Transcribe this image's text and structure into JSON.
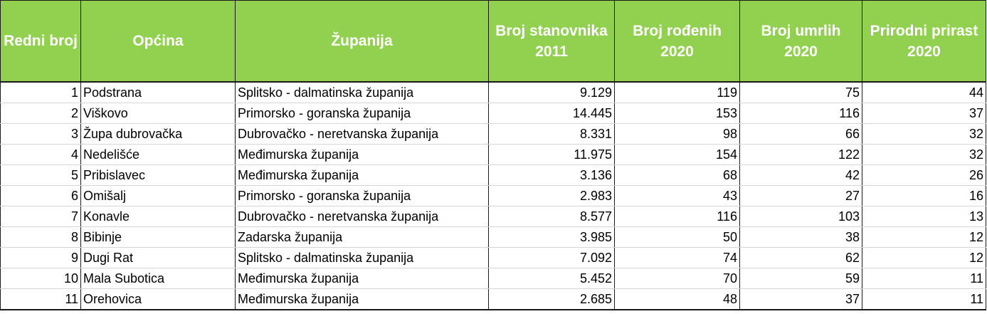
{
  "headers": {
    "rank": "Redni broj",
    "municipality": "Općina",
    "county": "Županija",
    "population": "Broj stanovnika 2011",
    "births": "Broj rođenih 2020",
    "deaths": "Broj umrlih 2020",
    "growth": "Prirodni prirast 2020"
  },
  "rows": [
    {
      "rank": "1",
      "municipality": "Podstrana",
      "county": "Splitsko - dalmatinska županija",
      "population": "9.129",
      "births": "119",
      "deaths": "75",
      "growth": "44"
    },
    {
      "rank": "2",
      "municipality": "Viškovo",
      "county": "Primorsko - goranska županija",
      "population": "14.445",
      "births": "153",
      "deaths": "116",
      "growth": "37"
    },
    {
      "rank": "3",
      "municipality": "Župa dubrovačka",
      "county": "Dubrovačko - neretvanska županija",
      "population": "8.331",
      "births": "98",
      "deaths": "66",
      "growth": "32"
    },
    {
      "rank": "4",
      "municipality": "Nedelišće",
      "county": "Međimurska županija",
      "population": "11.975",
      "births": "154",
      "deaths": "122",
      "growth": "32"
    },
    {
      "rank": "5",
      "municipality": "Pribislavec",
      "county": "Međimurska županija",
      "population": "3.136",
      "births": "68",
      "deaths": "42",
      "growth": "26"
    },
    {
      "rank": "6",
      "municipality": "Omišalj",
      "county": "Primorsko - goranska županija",
      "population": "2.983",
      "births": "43",
      "deaths": "27",
      "growth": "16"
    },
    {
      "rank": "7",
      "municipality": "Konavle",
      "county": "Dubrovačko - neretvanska županija",
      "population": "8.577",
      "births": "116",
      "deaths": "103",
      "growth": "13"
    },
    {
      "rank": "8",
      "municipality": "Bibinje",
      "county": "Zadarska županija",
      "population": "3.985",
      "births": "50",
      "deaths": "38",
      "growth": "12"
    },
    {
      "rank": "9",
      "municipality": "Dugi Rat",
      "county": "Splitsko - dalmatinska županija",
      "population": "7.092",
      "births": "74",
      "deaths": "62",
      "growth": "12"
    },
    {
      "rank": "10",
      "municipality": "Mala Subotica",
      "county": "Međimurska županija",
      "population": "5.452",
      "births": "70",
      "deaths": "59",
      "growth": "11"
    },
    {
      "rank": "11",
      "municipality": "Orehovica",
      "county": "Međimurska županija",
      "population": "2.685",
      "births": "48",
      "deaths": "37",
      "growth": "11"
    }
  ],
  "colors": {
    "header_background": "#92d050",
    "header_text": "#ffffff"
  }
}
